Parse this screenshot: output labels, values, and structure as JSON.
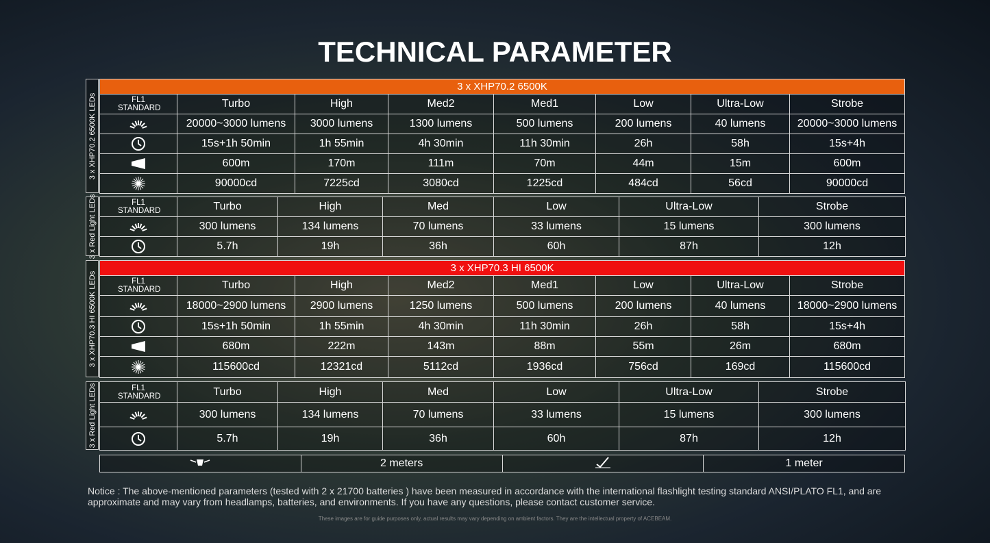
{
  "title": "TECHNICAL PARAMETER",
  "sections": [
    {
      "header": "3 x XHP70.2 6500K",
      "side_label": "3 x XHP70.2 6500K LEDs",
      "standard": "FL1 STANDARD",
      "modes": [
        "Turbo",
        "High",
        "Med2",
        "Med1",
        "Low",
        "Ultra-Low",
        "Strobe"
      ],
      "rows": [
        [
          "20000~3000 lumens",
          "3000 lumens",
          "1300 lumens",
          "500 lumens",
          "200 lumens",
          "40 lumens",
          "20000~3000 lumens"
        ],
        [
          "15s+1h 50min",
          "1h 55min",
          "4h 30min",
          "11h 30min",
          "26h",
          "58h",
          "15s+4h"
        ],
        [
          "600m",
          "170m",
          "111m",
          "70m",
          "44m",
          "15m",
          "600m"
        ],
        [
          "90000cd",
          "7225cd",
          "3080cd",
          "1225cd",
          "484cd",
          "56cd",
          "90000cd"
        ]
      ]
    },
    {
      "side_label": "3 x Red Light LEDs",
      "standard": "FL1 STANDARD",
      "modes": [
        "Turbo",
        "High",
        "Med",
        "Low",
        "Ultra-Low",
        "Strobe"
      ],
      "rows": [
        [
          "300 lumens",
          "134 lumens",
          "70 lumens",
          "33 lumens",
          "15 lumens",
          "300 lumens"
        ],
        [
          "5.7h",
          "19h",
          "36h",
          "60h",
          "87h",
          "12h"
        ]
      ]
    },
    {
      "header": "3 x XHP70.3 HI 6500K",
      "side_label": "3 x XHP70.3 HI 6500K LEDs",
      "standard": "FL1 STANDARD",
      "modes": [
        "Turbo",
        "High",
        "Med2",
        "Med1",
        "Low",
        "Ultra-Low",
        "Strobe"
      ],
      "rows": [
        [
          "18000~2900 lumens",
          "2900 lumens",
          "1250 lumens",
          "500 lumens",
          "200 lumens",
          "40 lumens",
          "18000~2900 lumens"
        ],
        [
          "15s+1h 50min",
          "1h 55min",
          "4h 30min",
          "11h 30min",
          "26h",
          "58h",
          "15s+4h"
        ],
        [
          "680m",
          "222m",
          "143m",
          "88m",
          "55m",
          "26m",
          "680m"
        ],
        [
          "115600cd",
          "12321cd",
          "5112cd",
          "1936cd",
          "756cd",
          "169cd",
          "115600cd"
        ]
      ]
    },
    {
      "side_label": "3 x Red Light LEDs",
      "standard": "FL1 STANDARD",
      "modes": [
        "Turbo",
        "High",
        "Med",
        "Low",
        "Ultra-Low",
        "Strobe"
      ],
      "rows": [
        [
          "300 lumens",
          "134 lumens",
          "70 lumens",
          "33 lumens",
          "15 lumens",
          "300 lumens"
        ],
        [
          "5.7h",
          "19h",
          "36h",
          "60h",
          "87h",
          "12h"
        ]
      ]
    }
  ],
  "impact": [
    "2 meters",
    "1 meter"
  ],
  "notice": "Notice : The above-mentioned parameters (tested with 2 x 21700 batteries ) have been measured in accordance with the international flashlight testing standard ANSI/PLATO FL1, and are approximate and may vary from headlamps, batteries, and environments. If you have any questions, please contact customer service.",
  "disclaimer": "These images are for guide purposes only, actual results may vary depending on ambient factors. They are the intellectual property of ACEBEAM."
}
